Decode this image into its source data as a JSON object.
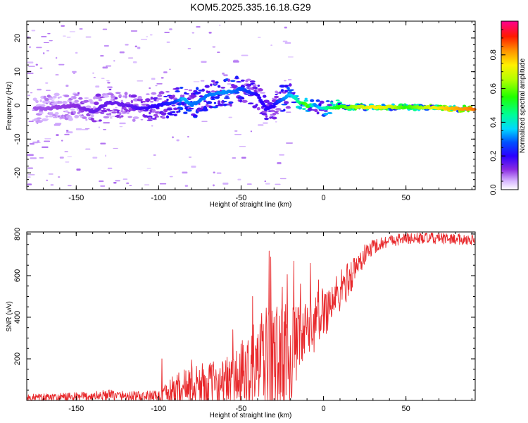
{
  "title": "KOM5.2025.335.16.18.G29",
  "chart_data": [
    {
      "type": "heatmap",
      "title": "KOM5.2025.335.16.18.G29",
      "xlabel": "Height of straight line (km)",
      "ylabel": "Frequency (Hz)",
      "xlim": [
        -180,
        92
      ],
      "ylim": [
        -25,
        25
      ],
      "xticks": [
        "-150",
        "-100",
        "-50",
        "0",
        "50"
      ],
      "xtick_values": [
        -150,
        -100,
        -50,
        0,
        50
      ],
      "yticks": [
        "-20",
        "-10",
        "0",
        "10",
        "20"
      ],
      "ytick_values": [
        -20,
        -10,
        0,
        10,
        20
      ],
      "colorbar": {
        "label": "Normalized spectral amplitude",
        "range": [
          0,
          1
        ],
        "ticks": [
          "0.0",
          "0.2",
          "0.4",
          "0.6",
          "0.8"
        ],
        "tick_values": [
          0,
          0.2,
          0.4,
          0.6,
          0.8
        ]
      },
      "ridge": {
        "x": [
          -170,
          -150,
          -140,
          -130,
          -120,
          -110,
          -100,
          -90,
          -85,
          -80,
          -70,
          -60,
          -55,
          -50,
          -45,
          -40,
          -35,
          -30,
          -25,
          -20,
          -15,
          -10,
          -5,
          0,
          5,
          10,
          15,
          20,
          30,
          40,
          50,
          60,
          70,
          80,
          92
        ],
        "freq": [
          -1,
          0,
          -2,
          1,
          0,
          -1,
          0,
          1,
          2,
          0,
          3,
          4,
          4,
          5,
          4,
          3,
          -1,
          0,
          2,
          3,
          1,
          0,
          0,
          -1,
          -0.5,
          -0.5,
          -0.5,
          -0.5,
          -0.5,
          -0.5,
          -0.5,
          -0.5,
          -0.8,
          -1,
          -1
        ],
        "amplitude": [
          0.1,
          0.12,
          0.15,
          0.15,
          0.15,
          0.18,
          0.2,
          0.25,
          0.35,
          0.3,
          0.3,
          0.32,
          0.3,
          0.28,
          0.25,
          0.2,
          0.2,
          0.2,
          0.3,
          0.35,
          0.45,
          0.6,
          0.3,
          0.4,
          0.5,
          0.55,
          0.6,
          0.65,
          0.75,
          0.7,
          0.55,
          0.65,
          0.75,
          0.8,
          0.85
        ]
      }
    },
    {
      "type": "line",
      "xlabel": "Height of straight line (km)",
      "ylabel": "SNR (v/v)",
      "xlim": [
        -180,
        92
      ],
      "ylim": [
        0,
        810
      ],
      "xticks": [
        "-150",
        "-100",
        "-50",
        "0",
        "50"
      ],
      "xtick_values": [
        -150,
        -100,
        -50,
        0,
        50
      ],
      "yticks": [
        "200",
        "400",
        "600",
        "800"
      ],
      "ytick_values": [
        200,
        400,
        600,
        800
      ],
      "series": [
        {
          "name": "SNR",
          "color": "#e8282b",
          "trend_x": [
            -180,
            -150,
            -130,
            -110,
            -100,
            -95,
            -90,
            -80,
            -70,
            -60,
            -50,
            -45,
            -40,
            -35,
            -30,
            -25,
            -20,
            -15,
            -10,
            -5,
            0,
            5,
            10,
            15,
            20,
            25,
            30,
            40,
            50,
            60,
            70,
            80,
            92
          ],
          "trend_y": [
            10,
            15,
            25,
            15,
            20,
            30,
            50,
            70,
            80,
            90,
            110,
            140,
            170,
            190,
            200,
            210,
            230,
            270,
            320,
            380,
            430,
            470,
            520,
            580,
            640,
            700,
            740,
            770,
            778,
            780,
            778,
            776,
            772
          ],
          "spread_x": [
            -180,
            -100,
            -90,
            -80,
            -60,
            -45,
            -35,
            -25,
            -20,
            -15,
            -5,
            5,
            15,
            25,
            35,
            92
          ],
          "spread_y": [
            20,
            30,
            80,
            100,
            110,
            200,
            260,
            260,
            240,
            180,
            140,
            120,
            90,
            50,
            30,
            25
          ],
          "peaks": [
            {
              "x": -98,
              "y": 200
            },
            {
              "x": -80,
              "y": 195
            },
            {
              "x": -55,
              "y": 340
            },
            {
              "x": -43,
              "y": 500
            },
            {
              "x": -33,
              "y": 718
            },
            {
              "x": -32,
              "y": 690
            },
            {
              "x": -25,
              "y": 545
            },
            {
              "x": -22,
              "y": 605
            },
            {
              "x": -18,
              "y": 670
            },
            {
              "x": -14,
              "y": 560
            },
            {
              "x": -8,
              "y": 660
            },
            {
              "x": -3,
              "y": 580
            }
          ]
        }
      ]
    }
  ]
}
